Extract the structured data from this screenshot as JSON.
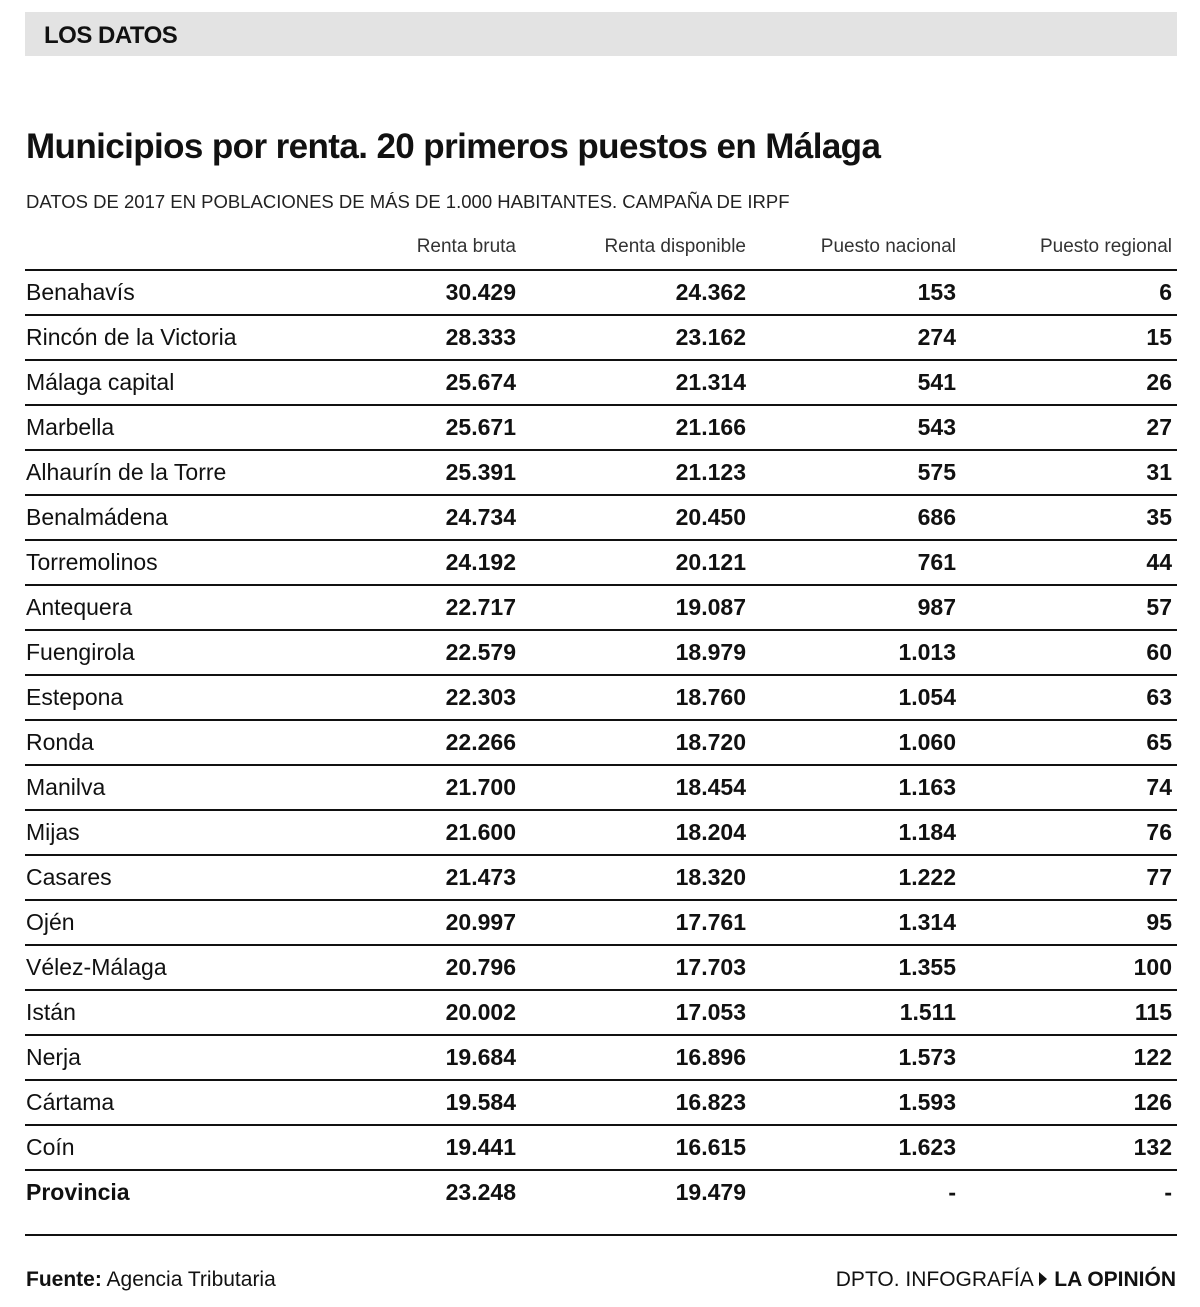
{
  "header": {
    "label": "LOS DATOS"
  },
  "title": "Municipios por renta. 20 primeros puestos en Málaga",
  "subtitle": "DATOS DE 2017 EN POBLACIONES DE MÁS DE 1.000 HABITANTES. CAMPAÑA DE IRPF",
  "table": {
    "columns": [
      "Renta bruta",
      "Renta disponible",
      "Puesto nacional",
      "Puesto regional"
    ],
    "rows": [
      [
        "Benahavís",
        "30.429",
        "24.362",
        "153",
        "6"
      ],
      [
        "Rincón de la Victoria",
        "28.333",
        "23.162",
        "274",
        "15"
      ],
      [
        "Málaga capital",
        "25.674",
        "21.314",
        "541",
        "26"
      ],
      [
        "Marbella",
        "25.671",
        "21.166",
        "543",
        "27"
      ],
      [
        "Alhaurín de la Torre",
        "25.391",
        "21.123",
        "575",
        "31"
      ],
      [
        "Benalmádena",
        "24.734",
        "20.450",
        "686",
        "35"
      ],
      [
        "Torremolinos",
        "24.192",
        "20.121",
        "761",
        "44"
      ],
      [
        "Antequera",
        "22.717",
        "19.087",
        "987",
        "57"
      ],
      [
        "Fuengirola",
        "22.579",
        "18.979",
        "1.013",
        "60"
      ],
      [
        "Estepona",
        "22.303",
        "18.760",
        "1.054",
        "63"
      ],
      [
        "Ronda",
        "22.266",
        "18.720",
        "1.060",
        "65"
      ],
      [
        "Manilva",
        "21.700",
        "18.454",
        "1.163",
        "74"
      ],
      [
        "Mijas",
        "21.600",
        "18.204",
        "1.184",
        "76"
      ],
      [
        "Casares",
        "21.473",
        "18.320",
        "1.222",
        "77"
      ],
      [
        "Ojén",
        "20.997",
        "17.761",
        "1.314",
        "95"
      ],
      [
        "Vélez-Málaga",
        "20.796",
        "17.703",
        "1.355",
        "100"
      ],
      [
        "Istán",
        "20.002",
        "17.053",
        "1.511",
        "115"
      ],
      [
        "Nerja",
        "19.684",
        "16.896",
        "1.573",
        "122"
      ],
      [
        "Cártama",
        "19.584",
        "16.823",
        "1.593",
        "126"
      ],
      [
        "Coín",
        "19.441",
        "16.615",
        "1.623",
        "132"
      ],
      [
        "Provincia",
        "23.248",
        "19.479",
        "-",
        "-"
      ]
    ]
  },
  "footer": {
    "source_label": "Fuente:",
    "source": "Agencia Tributaria",
    "credit": "DPTO. INFOGRAFÍA",
    "publisher": "LA OPINIÓN"
  }
}
